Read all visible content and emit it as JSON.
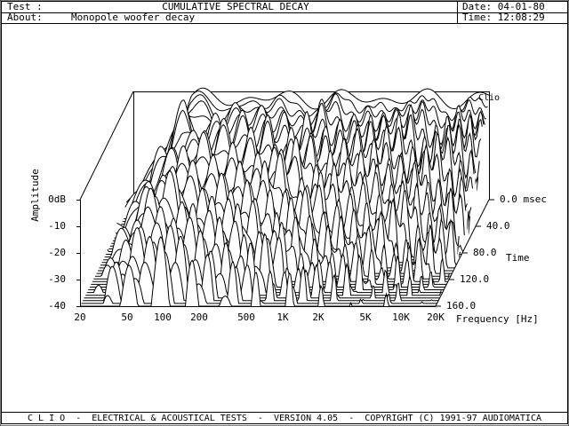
{
  "header": {
    "test_label": "Test :",
    "title": "CUMULATIVE SPECTRAL DECAY",
    "date": "Date: 04-01-80",
    "about_label": "About:",
    "about": "Monopole woofer decay",
    "time": "Time: 12:08:29"
  },
  "plot": {
    "brand": "Clio",
    "y_label": "Amplitude",
    "y_ticks": [
      "0dB",
      "-10",
      "-20",
      "-30",
      "-40"
    ],
    "x_label": "Frequency [Hz]",
    "x_ticks": [
      "20",
      "50",
      "100",
      "200",
      "500",
      "1K",
      "2K",
      "5K",
      "10K",
      "20K"
    ],
    "time_label": "Time",
    "time_ticks": [
      "0.0 msec",
      "40.0",
      "80.0",
      "120.0",
      "160.0"
    ]
  },
  "footer": "C L I O  -  ELECTRICAL & ACOUSTICAL TESTS  -  VERSION 4.05  -  COPYRIGHT (C) 1991-97 AUDIOMATICA"
}
